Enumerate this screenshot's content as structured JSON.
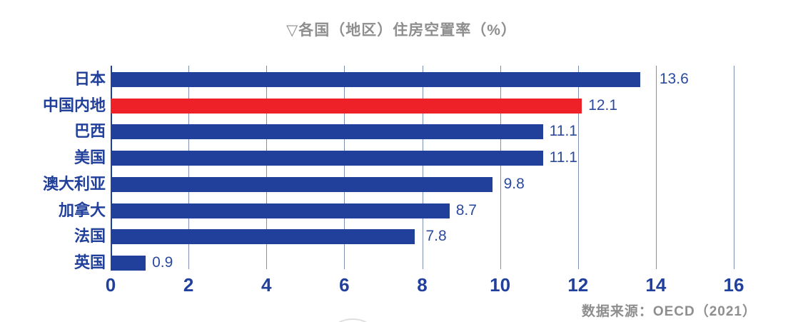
{
  "title": "▽各国（地区）住房空置率（%）",
  "source": "数据来源：OECD（2021）",
  "chart_data": {
    "type": "bar",
    "orientation": "horizontal",
    "title": "▽各国（地区）住房空置率（%）",
    "categories": [
      "日本",
      "中国内地",
      "巴西",
      "美国",
      "澳大利亚",
      "加拿大",
      "法国",
      "英国"
    ],
    "values": [
      13.6,
      12.1,
      11.1,
      11.1,
      9.8,
      8.7,
      7.8,
      0.9
    ],
    "value_labels": [
      "13.6",
      "12.1",
      "11.1",
      "11.1",
      "9.8",
      "8.7",
      "7.8",
      "0.9"
    ],
    "highlight_index": 1,
    "highlight_category": "中国内地",
    "xlim": [
      0,
      16
    ],
    "x_ticks": [
      "0",
      "2",
      "4",
      "6",
      "8",
      "10",
      "12",
      "14",
      "16"
    ],
    "grid": true,
    "legend": false,
    "source": "数据来源：OECD（2021）",
    "colors": {
      "bar": "#21409b",
      "highlight": "#ee2129",
      "value_label": "#2b4a9e",
      "category_label": "#21409b",
      "tick_label": "#21409b",
      "gridline": "#7e8fb2",
      "axis_line": "#21409b",
      "title": "#8e8e8e",
      "source": "#8e8e8e"
    }
  }
}
